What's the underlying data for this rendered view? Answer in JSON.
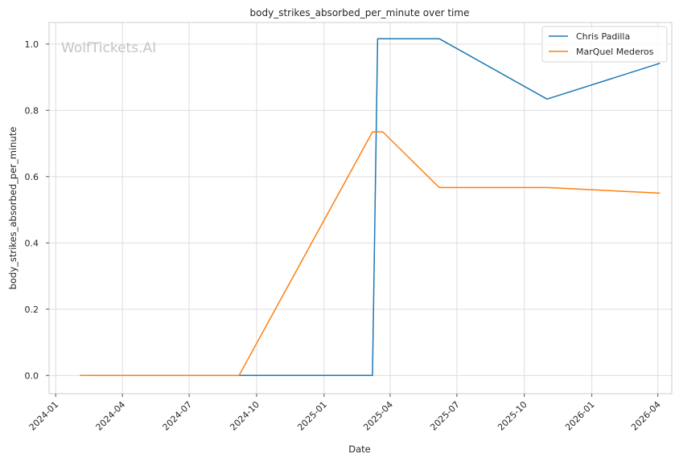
{
  "chart_data": {
    "type": "line",
    "title": "body_strikes_absorbed_per_minute over time",
    "xlabel": "Date",
    "ylabel": "body_strikes_absorbed_per_minute",
    "watermark": "WolfTickets.AI",
    "x_ticks": [
      "2024-01",
      "2024-04",
      "2024-07",
      "2024-10",
      "2025-01",
      "2025-04",
      "2025-07",
      "2025-10",
      "2026-01",
      "2026-04"
    ],
    "y_ticks": [
      "0.0",
      "0.2",
      "0.4",
      "0.6",
      "0.8",
      "1.0"
    ],
    "xlim": [
      "2023-12-23",
      "2026-04-20"
    ],
    "ylim": [
      -0.055,
      1.065
    ],
    "grid": true,
    "legend": "top-right",
    "series": [
      {
        "name": "Chris Padilla",
        "color": "#1f77b4",
        "points": [
          {
            "x": "2024-04-27",
            "y": 0.0
          },
          {
            "x": "2025-03-08",
            "y": 0.0
          },
          {
            "x": "2025-03-15",
            "y": 1.016
          },
          {
            "x": "2025-06-07",
            "y": 1.016
          },
          {
            "x": "2025-11-01",
            "y": 0.834
          },
          {
            "x": "2026-04-04",
            "y": 0.942
          }
        ]
      },
      {
        "name": "MarQuel Mederos",
        "color": "#ff7f0e",
        "points": [
          {
            "x": "2024-02-03",
            "y": 0.0
          },
          {
            "x": "2024-09-07",
            "y": 0.0
          },
          {
            "x": "2025-03-08",
            "y": 0.735
          },
          {
            "x": "2025-03-22",
            "y": 0.735
          },
          {
            "x": "2025-06-07",
            "y": 0.567
          },
          {
            "x": "2025-11-01",
            "y": 0.567
          },
          {
            "x": "2026-04-04",
            "y": 0.55
          }
        ]
      }
    ]
  }
}
